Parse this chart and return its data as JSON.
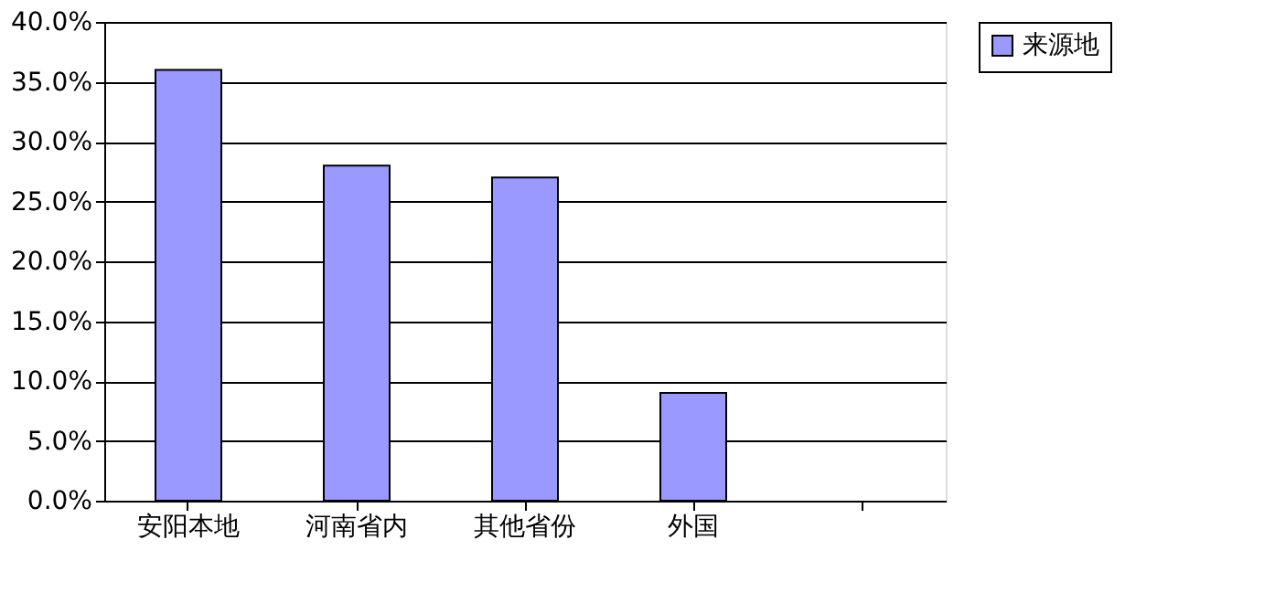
{
  "chart_data": {
    "type": "bar",
    "categories": [
      "安阳本地",
      "河南省内",
      "其他省份",
      "外国",
      null
    ],
    "series": [
      {
        "name": "来源地",
        "color": "#9999ff",
        "values": [
          36,
          28,
          27,
          9,
          null
        ]
      }
    ],
    "ylim": [
      0,
      40
    ],
    "yticks": [
      {
        "value": 0,
        "label": "0.0%"
      },
      {
        "value": 5,
        "label": "5.0%"
      },
      {
        "value": 10,
        "label": "10.0%"
      },
      {
        "value": 15,
        "label": "15.0%"
      },
      {
        "value": 20,
        "label": "20.0%"
      },
      {
        "value": 25,
        "label": "25.0%"
      },
      {
        "value": 30,
        "label": "30.0%"
      },
      {
        "value": 35,
        "label": "35.0%"
      },
      {
        "value": 40,
        "label": "40.0%"
      }
    ],
    "grid": "y",
    "legend": "right"
  }
}
